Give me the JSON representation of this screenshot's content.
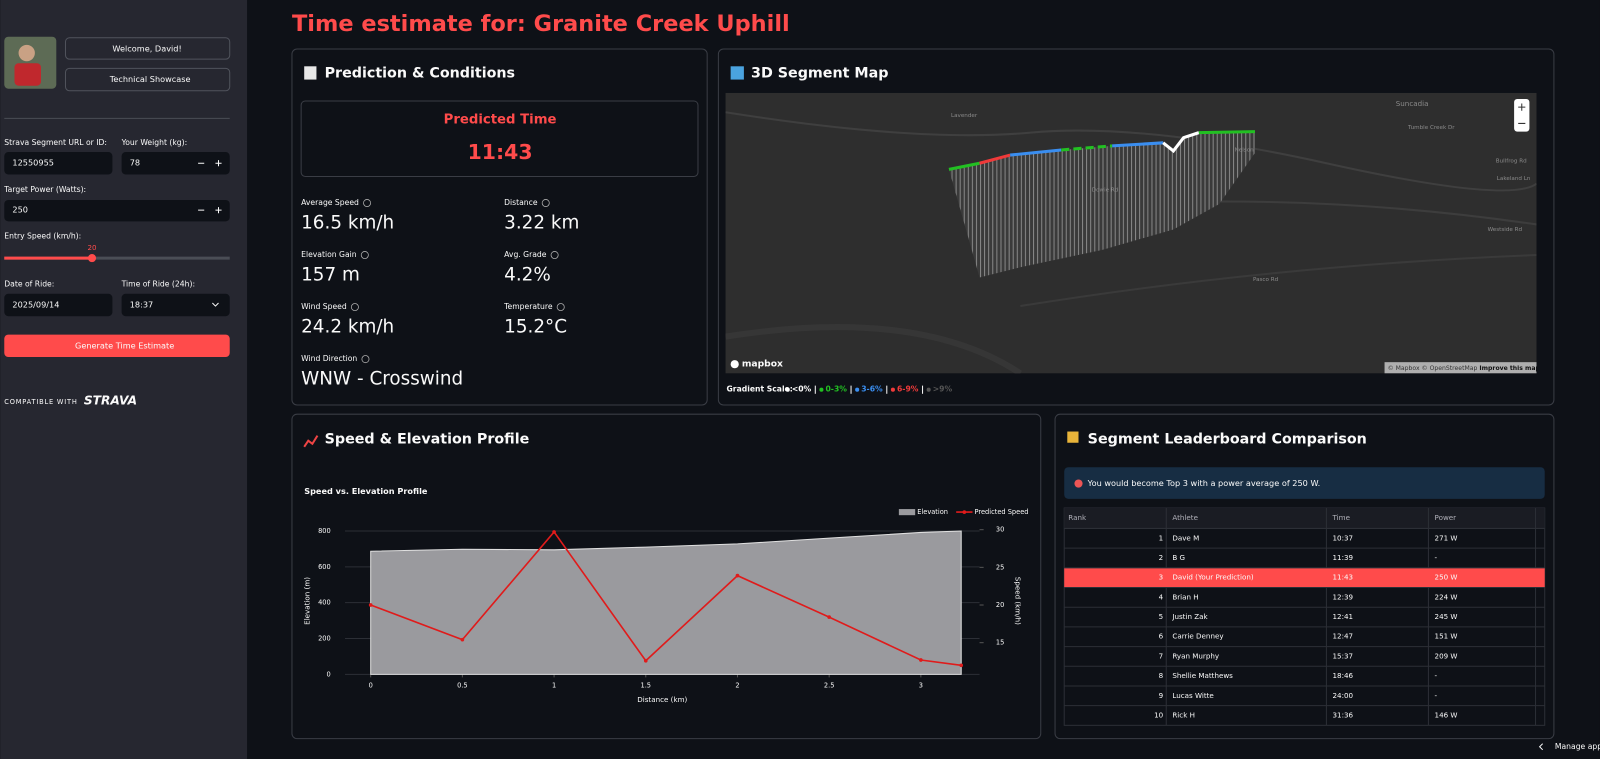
{
  "sidebar": {
    "welcome": "Welcome, David!",
    "showcase": "Technical Showcase",
    "fields": [
      {
        "label": "Strava Segment URL or ID:",
        "value": "12550955"
      },
      {
        "label": "Your Weight (kg):",
        "value": "78"
      },
      {
        "label": "Target Power (Watts):",
        "value": "250"
      },
      {
        "label": "Entry Speed (km/h):",
        "value": "20"
      },
      {
        "label": "Date of Ride:",
        "value": "2025/09/14"
      },
      {
        "label": "Time of Ride (24h):",
        "value": "18:37"
      }
    ],
    "button": "Generate Time Estimate",
    "compatible": "COMPATIBLE WITH",
    "brand": "STRAVA"
  },
  "header": {
    "title": "Time estimate for: Granite Creek Uphill"
  },
  "prediction": {
    "title": "Prediction & Conditions",
    "label": "Predicted Time",
    "value": "11:43",
    "metrics": [
      {
        "label": "Average Speed",
        "value": "16.5 km/h"
      },
      {
        "label": "Distance",
        "value": "3.22 km"
      },
      {
        "label": "Elevation Gain",
        "value": "157 m"
      },
      {
        "label": "Avg. Grade",
        "value": "4.2%"
      },
      {
        "label": "Wind Speed",
        "value": "24.2 km/h"
      },
      {
        "label": "Temperature",
        "value": "15.2°C"
      },
      {
        "label": "Wind Direction",
        "value": "WNW - Crosswind"
      }
    ]
  },
  "map": {
    "title": "3D Segment Map",
    "labels": [
      "Lavender",
      "Nelson",
      "Suncadia",
      "Tumble Creek Dr",
      "Bullfrog Rd",
      "Lakeland Ln",
      "Westside Rd",
      "Pasco Rd",
      "Dowie Rd"
    ],
    "logo": "mapbox",
    "attribution": "© Mapbox © OpenStreetMap",
    "improve": "Improve this map",
    "scale_label": "Gradient Scale:",
    "scale": [
      {
        "label": "<0%",
        "color": "#ffffff"
      },
      {
        "label": "0-3%",
        "color": "#22c022"
      },
      {
        "label": "3-6%",
        "color": "#3a8ef0"
      },
      {
        "label": "6-9%",
        "color": "#f03a3a"
      },
      {
        "label": ">9%",
        "color": "#555555"
      }
    ]
  },
  "chart_data": {
    "type": "line",
    "panel_title": "Speed & Elevation Profile",
    "title": "Speed vs. Elevation Profile",
    "x_label": "Distance (km)",
    "y_label": "Elevation (m)",
    "y2_label": "Speed (km/h)",
    "x": [
      0,
      0.5,
      1,
      1.5,
      2,
      2.5,
      3,
      3.22
    ],
    "xlim": [
      -0.14,
      3.32
    ],
    "xticks": [
      0,
      0.5,
      1,
      1.5,
      2,
      2.5,
      3
    ],
    "ylim": [
      0,
      820
    ],
    "yticks": [
      0,
      200,
      400,
      600,
      800
    ],
    "y2lim": [
      10.8,
      30.3
    ],
    "y2ticks": [
      15,
      20,
      25,
      30
    ],
    "grid": true,
    "legend": "top-right",
    "series": [
      {
        "name": "Elevation",
        "color": "#9a9a9e",
        "fill": true,
        "values": [
          687,
          698,
          695,
          710,
          728,
          760,
          792,
          800
        ]
      },
      {
        "name": "Predicted Speed",
        "color": "#e01b1b",
        "axis": "y2",
        "values": [
          20.0,
          15.4,
          29.7,
          12.6,
          23.9,
          18.4,
          12.7,
          12.0
        ]
      }
    ]
  },
  "leaderboard": {
    "title": "Segment Leaderboard Comparison",
    "message": "You would become Top 3 with a power average of 250 W.",
    "columns": [
      "Rank",
      "Athlete",
      "Time",
      "Power"
    ],
    "highlight": 2,
    "highlight_color": "#ff4b4b",
    "rows": [
      [
        "1",
        "Dave M",
        "10:37",
        "271 W"
      ],
      [
        "2",
        "B G",
        "11:39",
        "-"
      ],
      [
        "3",
        "David (Your Prediction)",
        "11:43",
        "250 W"
      ],
      [
        "4",
        "Brian H",
        "12:39",
        "224 W"
      ],
      [
        "5",
        "Justin Zak",
        "12:41",
        "245 W"
      ],
      [
        "6",
        "Carrie Denney",
        "12:47",
        "151 W"
      ],
      [
        "7",
        "Ryan Murphy",
        "15:37",
        "209 W"
      ],
      [
        "8",
        "Shellie Matthews",
        "18:46",
        "-"
      ],
      [
        "9",
        "Lucas Witte",
        "24:00",
        "-"
      ],
      [
        "10",
        "Rick H",
        "31:36",
        "146 W"
      ]
    ]
  },
  "footer": {
    "manage": "Manage app"
  }
}
